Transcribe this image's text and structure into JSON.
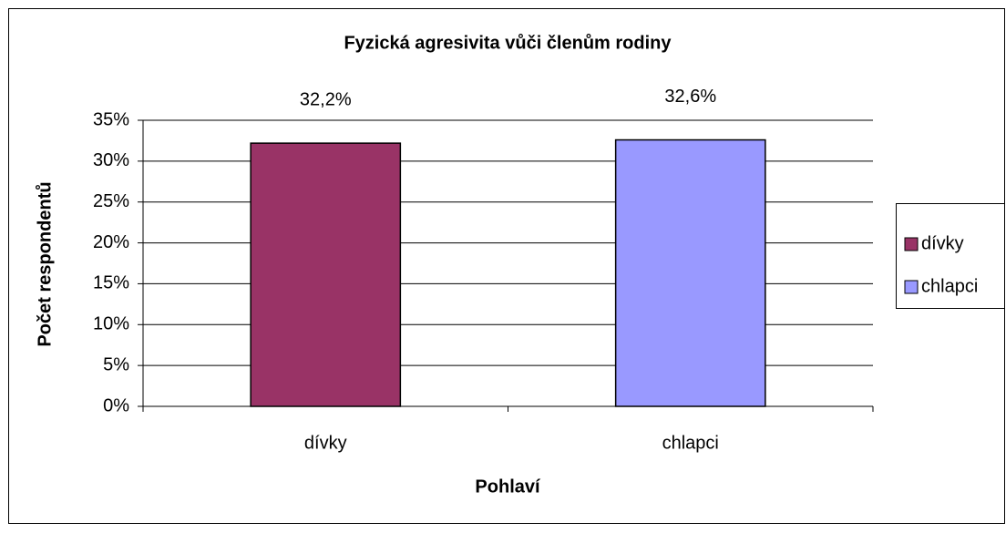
{
  "chart_data": {
    "type": "bar",
    "title": "Fyzická agresivita vůči členům rodiny",
    "xlabel": "Pohlaví",
    "ylabel": "Počet respondentů",
    "categories": [
      "dívky",
      "chlapci"
    ],
    "values": [
      32.2,
      32.6
    ],
    "value_labels": [
      "32,2%",
      "32,6%"
    ],
    "colors": [
      "#993366",
      "#9999ff"
    ],
    "ylim": [
      0,
      35
    ],
    "yticks": [
      {
        "value": 0,
        "label": "0%"
      },
      {
        "value": 5,
        "label": "5%"
      },
      {
        "value": 10,
        "label": "10%"
      },
      {
        "value": 15,
        "label": "15%"
      },
      {
        "value": 20,
        "label": "20%"
      },
      {
        "value": 25,
        "label": "25%"
      },
      {
        "value": 30,
        "label": "30%"
      },
      {
        "value": 35,
        "label": "35%"
      }
    ],
    "grid": true,
    "legend": "right"
  }
}
